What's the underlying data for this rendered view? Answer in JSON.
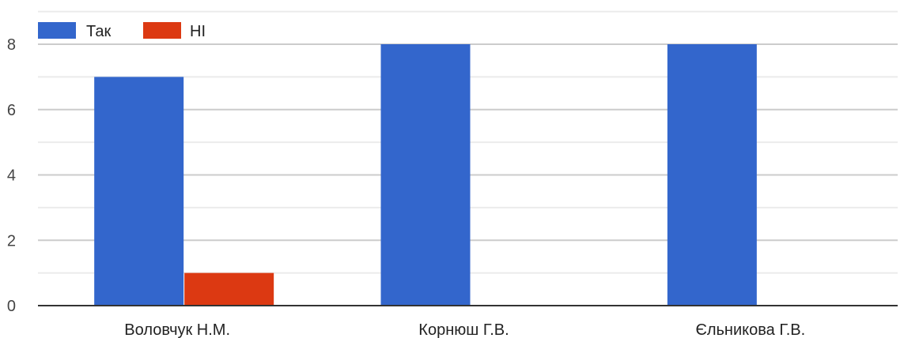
{
  "chart_data": {
    "type": "bar",
    "categories": [
      "Воловчук Н.М.",
      "Корнюш Г.В.",
      "Єльникова Г.В."
    ],
    "series": [
      {
        "name": "Так",
        "color": "#3366cc",
        "values": [
          7,
          8,
          8
        ]
      },
      {
        "name": "НІ",
        "color": "#dc3912",
        "values": [
          1,
          0,
          0
        ]
      }
    ],
    "title": "",
    "xlabel": "",
    "ylabel": "",
    "ylim": [
      0,
      8
    ],
    "yticks": [
      "0",
      "2",
      "4",
      "6",
      "8"
    ],
    "grid": true,
    "legend_position": "top-left"
  }
}
